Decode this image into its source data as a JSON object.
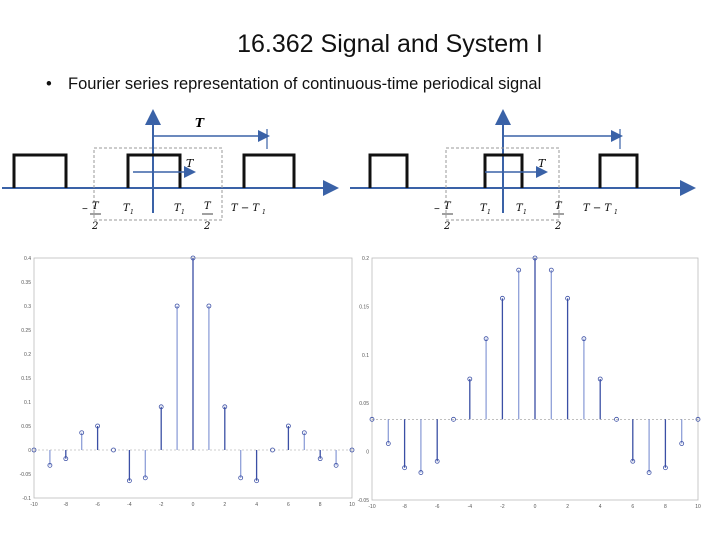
{
  "slide": {
    "title": "16.362 Signal and System I",
    "bullet": "Fourier series representation of continuous-time periodical signal"
  },
  "math": {
    "T": "T",
    "T1": "T",
    "T1_sub": "1",
    "half": "2",
    "minus": "−",
    "T_minus_T1": "T − T"
  },
  "chart_data": [
    {
      "type": "stem",
      "x": [
        -10,
        -9,
        -8,
        -7,
        -6,
        -5,
        -4,
        -3,
        -2,
        -1,
        0,
        1,
        2,
        3,
        4,
        5,
        6,
        7,
        8,
        9,
        10
      ],
      "values": [
        0.0,
        -0.032,
        -0.018,
        0.036,
        0.05,
        0.0,
        -0.064,
        -0.058,
        0.09,
        0.3,
        0.4,
        0.3,
        0.09,
        -0.058,
        -0.064,
        0.0,
        0.05,
        0.036,
        -0.018,
        -0.032,
        0.0
      ],
      "ylim": [
        -0.1,
        0.4
      ],
      "yticks": [
        "0.4",
        "0.35",
        "0.3",
        "0.25",
        "0.2",
        "0.15",
        "0.1",
        "0.05",
        "0",
        "-0.05",
        "-0.1"
      ],
      "xticks": [
        "-10",
        "-8",
        "-6",
        "-4",
        "-2",
        "0",
        "2",
        "4",
        "6",
        "8",
        "10"
      ]
    },
    {
      "type": "stem",
      "x": [
        -10,
        -9,
        -8,
        -7,
        -6,
        -5,
        -4,
        -3,
        -2,
        -1,
        0,
        1,
        2,
        3,
        4,
        5,
        6,
        7,
        8,
        9,
        10
      ],
      "values": [
        0.0,
        -0.03,
        -0.06,
        -0.066,
        -0.052,
        0.0,
        0.05,
        0.1,
        0.15,
        0.185,
        0.2,
        0.185,
        0.15,
        0.1,
        0.05,
        0.0,
        -0.052,
        -0.066,
        -0.06,
        -0.03,
        0.0
      ],
      "ylim": [
        -0.1,
        0.2
      ],
      "yticks": [
        "0.2",
        "0.15",
        "0.1",
        "0.05",
        "0",
        "-0.05"
      ],
      "xticks": [
        "-10",
        "-8",
        "-6",
        "-4",
        "-2",
        "0",
        "2",
        "4",
        "6",
        "8",
        "10"
      ]
    }
  ]
}
